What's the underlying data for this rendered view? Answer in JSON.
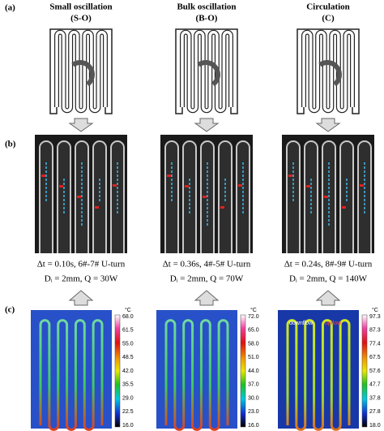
{
  "labels": {
    "a": "(a)",
    "b": "(b)",
    "c": "(c)"
  },
  "columns": [
    {
      "title": "Small oscillation",
      "code": "(S-O)",
      "caption1": "Δt = 0.10s, 6#-7# U-turn",
      "caption2": "Dᵢ = 2mm, Q = 30W",
      "unit": "°C",
      "scale": [
        "68.0",
        "61.5",
        "55.0",
        "48.5",
        "42.0",
        "35.5",
        "29.0",
        "22.5",
        "16.0"
      ]
    },
    {
      "title": "Bulk oscillation",
      "code": "(B-O)",
      "caption1": "Δt = 0.36s, 4#-5# U-turn",
      "caption2": "Dᵢ = 2mm, Q = 70W",
      "unit": "°C",
      "scale": [
        "72.0",
        "65.0",
        "58.0",
        "51.0",
        "44.0",
        "37.0",
        "30.0",
        "23.0",
        "16.0"
      ]
    },
    {
      "title": "Circulation",
      "code": "(C)",
      "caption1": "Δt = 0.24s, 8#-9# U-turn",
      "caption2": "Dᵢ = 2mm, Q = 140W",
      "unit": "°C",
      "scale": [
        "97.3",
        "87.3",
        "77.4",
        "67.5",
        "57.6",
        "47.7",
        "37.8",
        "27.8",
        "18.0"
      ]
    }
  ],
  "annotations": {
    "downflow": "downflow",
    "upflow": "upflow"
  }
}
